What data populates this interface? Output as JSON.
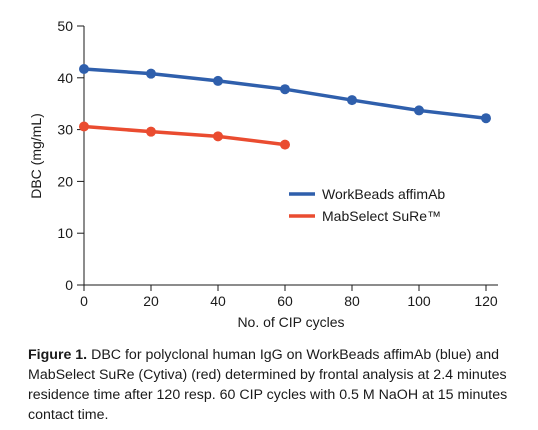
{
  "chart_data": {
    "type": "line",
    "title": "",
    "xlabel": "No. of CIP cycles",
    "ylabel": "DBC (mg/mL)",
    "xlim": [
      0,
      120
    ],
    "ylim": [
      0,
      50
    ],
    "xticks": [
      0,
      20,
      40,
      60,
      80,
      100,
      120
    ],
    "yticks": [
      0,
      10,
      20,
      30,
      40,
      50
    ],
    "grid": false,
    "legend_position": "right",
    "series": [
      {
        "name": "WorkBeads affimAb",
        "color": "#2f5fac",
        "x": [
          0,
          20,
          40,
          60,
          80,
          100,
          120
        ],
        "y": [
          41.7,
          40.8,
          39.4,
          37.8,
          35.7,
          33.7,
          32.2
        ]
      },
      {
        "name": "MabSelect SuRe™",
        "color": "#ea4c30",
        "x": [
          0,
          20,
          40,
          60
        ],
        "y": [
          30.6,
          29.6,
          28.7,
          27.1
        ]
      }
    ]
  },
  "caption": {
    "label": "Figure 1.",
    "text": "DBC for polyclonal human IgG on WorkBeads affimAb (blue) and MabSelect SuRe (Cytiva) (red) determined by frontal analysis at 2.4 minutes residence time after 120 resp. 60 CIP cycles with 0.5 M NaOH at 15 minutes contact time."
  }
}
